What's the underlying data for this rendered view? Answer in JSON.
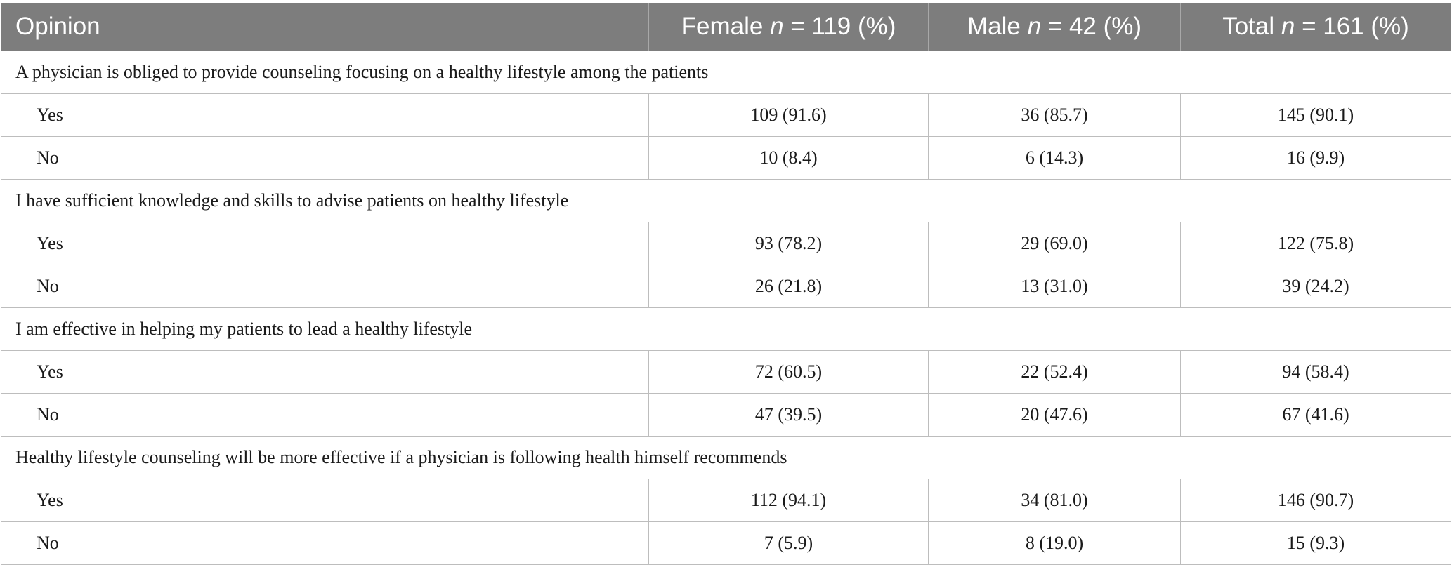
{
  "table": {
    "header": {
      "opinion": "Opinion",
      "female": {
        "label": "Female",
        "n_var": "n",
        "rest": "= 119 (%)"
      },
      "male": {
        "label": "Male",
        "n_var": "n",
        "rest": "= 42 (%)"
      },
      "total": {
        "label": "Total",
        "n_var": "n",
        "rest": "= 161 (%)"
      }
    },
    "groups": [
      {
        "question": "A physician is obliged to provide counseling focusing on a healthy lifestyle among the patients",
        "rows": [
          {
            "answer": "Yes",
            "female": "109 (91.6)",
            "male": "36 (85.7)",
            "total": "145 (90.1)"
          },
          {
            "answer": "No",
            "female": "10 (8.4)",
            "male": "6 (14.3)",
            "total": "16 (9.9)"
          }
        ]
      },
      {
        "question": "I have sufficient knowledge and skills to advise patients on healthy lifestyle",
        "rows": [
          {
            "answer": "Yes",
            "female": "93 (78.2)",
            "male": "29 (69.0)",
            "total": "122 (75.8)"
          },
          {
            "answer": "No",
            "female": "26 (21.8)",
            "male": "13 (31.0)",
            "total": "39 (24.2)"
          }
        ]
      },
      {
        "question": "I am effective in helping my patients to lead a healthy lifestyle",
        "rows": [
          {
            "answer": "Yes",
            "female": "72 (60.5)",
            "male": "22 (52.4)",
            "total": "94 (58.4)"
          },
          {
            "answer": "No",
            "female": "47 (39.5)",
            "male": "20 (47.6)",
            "total": "67 (41.6)"
          }
        ]
      },
      {
        "question": "Healthy lifestyle counseling will be more effective if a physician is following health himself recommends",
        "rows": [
          {
            "answer": "Yes",
            "female": "112 (94.1)",
            "male": "34 (81.0)",
            "total": "146 (90.7)"
          },
          {
            "answer": "No",
            "female": "7 (5.9)",
            "male": "8 (19.0)",
            "total": "15 (9.3)"
          }
        ]
      }
    ]
  }
}
